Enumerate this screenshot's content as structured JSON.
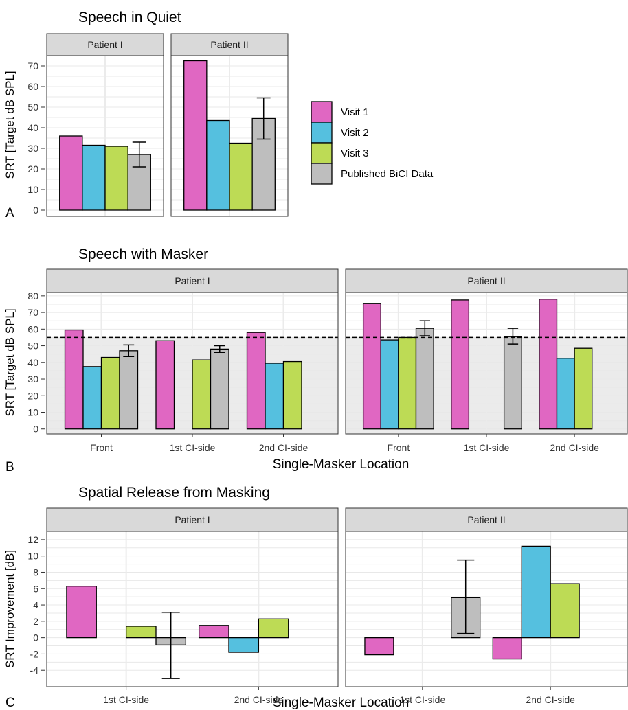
{
  "colors": {
    "visit1": "#e067c2",
    "visit2": "#55c0df",
    "visit3": "#bddb55",
    "published": "#bebebe",
    "strip": "#d9d9d9",
    "shade": "#ebebeb"
  },
  "legend": [
    "Visit 1",
    "Visit 2",
    "Visit 3",
    "Published BiCI Data"
  ],
  "chart_data": [
    {
      "panel_label": "A",
      "type": "bar",
      "title": "Speech in Quiet",
      "ylabel": "SRT [Target dB SPL]",
      "xlabel": "",
      "ylim": [
        -3,
        75
      ],
      "yticks": [
        0,
        10,
        20,
        30,
        40,
        50,
        60,
        70
      ],
      "grid": true,
      "legend_position": "right",
      "facets": [
        {
          "name": "Patient I",
          "categories": [
            ""
          ],
          "series": [
            {
              "name": "Visit 1",
              "values": [
                36
              ]
            },
            {
              "name": "Visit 2",
              "values": [
                31.5
              ]
            },
            {
              "name": "Visit 3",
              "values": [
                31
              ]
            },
            {
              "name": "Published BiCI Data",
              "values": [
                27
              ],
              "err_low": [
                21
              ],
              "err_high": [
                33
              ]
            }
          ]
        },
        {
          "name": "Patient II",
          "categories": [
            ""
          ],
          "series": [
            {
              "name": "Visit 1",
              "values": [
                72.5
              ]
            },
            {
              "name": "Visit 2",
              "values": [
                43.5
              ]
            },
            {
              "name": "Visit 3",
              "values": [
                32.5
              ]
            },
            {
              "name": "Published BiCI Data",
              "values": [
                44.5
              ],
              "err_low": [
                34.5
              ],
              "err_high": [
                54.5
              ]
            }
          ]
        }
      ]
    },
    {
      "panel_label": "B",
      "type": "bar",
      "title": "Speech with Masker",
      "ylabel": "SRT [Target dB SPL]",
      "xlabel": "Single-Masker Location",
      "ylim": [
        -3,
        82
      ],
      "yticks": [
        0,
        10,
        20,
        30,
        40,
        50,
        60,
        70,
        80
      ],
      "grid": true,
      "reference_line": 55,
      "shade_below": 55,
      "facets": [
        {
          "name": "Patient I",
          "categories": [
            "Front",
            "1st CI-side",
            "2nd CI-side"
          ],
          "series": [
            {
              "name": "Visit 1",
              "values": [
                59.5,
                53,
                58
              ]
            },
            {
              "name": "Visit 2",
              "values": [
                37.5,
                null,
                39.5
              ]
            },
            {
              "name": "Visit 3",
              "values": [
                43,
                41.5,
                40.5
              ]
            },
            {
              "name": "Published BiCI Data",
              "values": [
                47,
                48,
                null
              ],
              "err_low": [
                43.5,
                46,
                null
              ],
              "err_high": [
                50.5,
                50,
                null
              ]
            }
          ]
        },
        {
          "name": "Patient II",
          "categories": [
            "Front",
            "1st CI-side",
            "2nd CI-side"
          ],
          "series": [
            {
              "name": "Visit 1",
              "values": [
                75.5,
                77.5,
                78
              ]
            },
            {
              "name": "Visit 2",
              "values": [
                53.5,
                null,
                42.5
              ]
            },
            {
              "name": "Visit 3",
              "values": [
                55,
                null,
                48.5
              ]
            },
            {
              "name": "Published BiCI Data",
              "values": [
                60.5,
                55.5,
                null
              ],
              "err_low": [
                56,
                51,
                null
              ],
              "err_high": [
                65,
                60.5,
                null
              ]
            }
          ]
        }
      ]
    },
    {
      "panel_label": "C",
      "type": "bar",
      "title": "Spatial Release from Masking",
      "ylabel": "SRT Improvement [dB]",
      "xlabel": "Single-Masker Location",
      "ylim": [
        -6,
        13
      ],
      "yticks": [
        -4,
        -2,
        0,
        2,
        4,
        6,
        8,
        10,
        12
      ],
      "grid": true,
      "facets": [
        {
          "name": "Patient I",
          "categories": [
            "1st CI-side",
            "2nd CI-side"
          ],
          "series": [
            {
              "name": "Visit 1",
              "values": [
                6.3,
                1.5
              ]
            },
            {
              "name": "Visit 2",
              "values": [
                null,
                -1.8
              ]
            },
            {
              "name": "Visit 3",
              "values": [
                1.4,
                2.3
              ]
            },
            {
              "name": "Published BiCI Data",
              "values": [
                -0.9,
                null
              ],
              "err_low": [
                -5,
                null
              ],
              "err_high": [
                3.1,
                null
              ]
            }
          ]
        },
        {
          "name": "Patient II",
          "categories": [
            "1st CI-side",
            "2nd CI-side"
          ],
          "series": [
            {
              "name": "Visit 1",
              "values": [
                -2.1,
                -2.6
              ]
            },
            {
              "name": "Visit 2",
              "values": [
                null,
                11.2
              ]
            },
            {
              "name": "Visit 3",
              "values": [
                null,
                6.6
              ]
            },
            {
              "name": "Published BiCI Data",
              "values": [
                4.9,
                null
              ],
              "err_low": [
                0.5,
                null
              ],
              "err_high": [
                9.5,
                null
              ]
            }
          ]
        }
      ]
    }
  ]
}
